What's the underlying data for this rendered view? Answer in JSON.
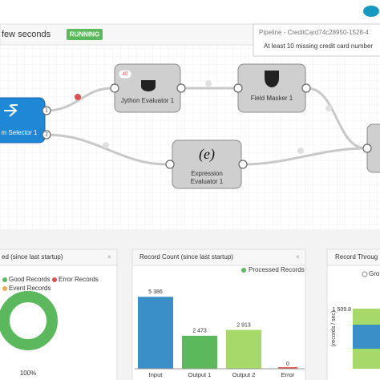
{
  "header": {
    "status_time": "few seconds",
    "status": "RUNNING"
  },
  "tooltip": {
    "title": "Pipeline - CreditCard74c28950-1528-4",
    "message": "At least 10 missing credit card number"
  },
  "nodes": [
    {
      "label": "m Selector 1",
      "ports": [
        "1",
        "2"
      ]
    },
    {
      "label": "Jython Evaluator 1",
      "badge": "40"
    },
    {
      "label": "Field Masker 1"
    },
    {
      "label_lines": [
        "Expression",
        "Evaluator 1"
      ]
    }
  ],
  "record_summary": {
    "title": "ed (since last startup)",
    "legend": [
      "Good Records",
      "Error Records",
      "Event Records"
    ],
    "value": 100,
    "value_label": "100%"
  },
  "record_count": {
    "title": "Record Count (since last startup)",
    "legend": "Processed Records",
    "categories": [
      "Input",
      "Output 1",
      "Output 2",
      "Error"
    ],
    "values": [
      5386,
      2473,
      2913,
      0
    ],
    "value_labels": [
      "5 386",
      "2 473",
      "2 913",
      "0"
    ],
    "colors": [
      "#3a8fc9",
      "#5cb85c",
      "#a6d96a",
      "#d9534f"
    ],
    "ylim": [
      0,
      6000
    ]
  },
  "throughput": {
    "title": "Record Throug",
    "legend": "Gro",
    "ytick": "1 509.8",
    "axis_label": "(records / sec)"
  }
}
